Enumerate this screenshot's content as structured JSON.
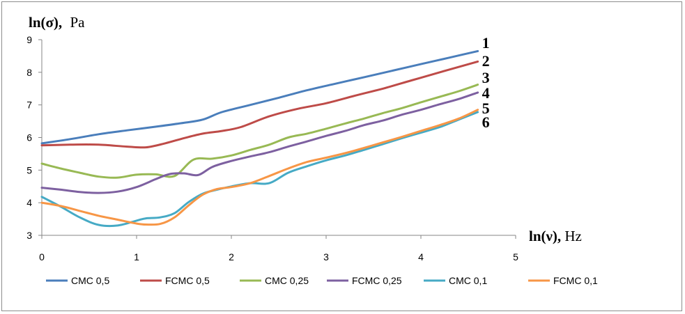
{
  "chart_data": {
    "type": "line",
    "ylabel_main": "ln(σ),",
    "ylabel_unit": "Pa",
    "xlabel_main": "ln(ν),",
    "xlabel_unit": "Hz",
    "xlim": [
      0,
      5
    ],
    "ylim": [
      3,
      9
    ],
    "x_ticks": [
      0,
      1,
      2,
      3,
      4,
      5
    ],
    "y_ticks": [
      3,
      4,
      5,
      6,
      7,
      8,
      9
    ],
    "legend_position": "bottom",
    "series": [
      {
        "name": "CMC 0,5",
        "label": "1",
        "color": "#4a7ebb",
        "x": [
          0,
          0.3,
          0.6,
          0.9,
          1.2,
          1.5,
          1.7,
          1.9,
          2.2,
          2.5,
          2.8,
          3.1,
          3.4,
          3.7,
          4.0,
          4.3,
          4.6
        ],
        "y": [
          5.82,
          5.95,
          6.1,
          6.22,
          6.33,
          6.45,
          6.55,
          6.78,
          7.0,
          7.22,
          7.45,
          7.65,
          7.85,
          8.05,
          8.25,
          8.45,
          8.65
        ]
      },
      {
        "name": "FCMC 0,5",
        "label": "2",
        "color": "#be4b48",
        "x": [
          0,
          0.3,
          0.6,
          0.9,
          1.1,
          1.3,
          1.5,
          1.7,
          1.9,
          2.1,
          2.4,
          2.7,
          3.0,
          3.3,
          3.6,
          3.9,
          4.2,
          4.6
        ],
        "y": [
          5.76,
          5.78,
          5.78,
          5.72,
          5.7,
          5.82,
          5.98,
          6.12,
          6.2,
          6.32,
          6.65,
          6.88,
          7.05,
          7.28,
          7.5,
          7.75,
          8.0,
          8.33
        ]
      },
      {
        "name": "CMC 0,25",
        "label": "3",
        "color": "#98b954",
        "x": [
          0,
          0.2,
          0.4,
          0.6,
          0.8,
          1.0,
          1.2,
          1.4,
          1.6,
          1.8,
          2.0,
          2.2,
          2.4,
          2.6,
          2.8,
          3.0,
          3.2,
          3.4,
          3.6,
          3.8,
          4.0,
          4.2,
          4.4,
          4.6
        ],
        "y": [
          5.2,
          5.05,
          4.92,
          4.8,
          4.77,
          4.86,
          4.87,
          4.82,
          5.32,
          5.35,
          5.45,
          5.62,
          5.78,
          6.0,
          6.12,
          6.27,
          6.43,
          6.58,
          6.75,
          6.9,
          7.08,
          7.25,
          7.42,
          7.62
        ]
      },
      {
        "name": "FCMC 0,25",
        "label": "4",
        "color": "#7d60a0",
        "x": [
          0,
          0.2,
          0.4,
          0.6,
          0.8,
          1.0,
          1.2,
          1.35,
          1.5,
          1.65,
          1.8,
          2.0,
          2.2,
          2.4,
          2.6,
          2.8,
          3.0,
          3.2,
          3.4,
          3.6,
          3.8,
          4.0,
          4.2,
          4.4,
          4.6
        ],
        "y": [
          4.46,
          4.4,
          4.33,
          4.3,
          4.34,
          4.48,
          4.72,
          4.88,
          4.9,
          4.85,
          5.1,
          5.28,
          5.42,
          5.55,
          5.72,
          5.88,
          6.05,
          6.2,
          6.38,
          6.52,
          6.7,
          6.85,
          7.02,
          7.18,
          7.38
        ]
      },
      {
        "name": "CMC 0,1",
        "label": "6",
        "color": "#46aac5",
        "x": [
          0,
          0.2,
          0.4,
          0.6,
          0.8,
          1.0,
          1.1,
          1.25,
          1.4,
          1.55,
          1.7,
          1.85,
          2.0,
          2.2,
          2.4,
          2.6,
          2.8,
          3.0,
          3.2,
          3.4,
          3.6,
          3.8,
          4.0,
          4.2,
          4.4,
          4.6
        ],
        "y": [
          4.18,
          3.88,
          3.55,
          3.32,
          3.3,
          3.45,
          3.52,
          3.55,
          3.68,
          4.02,
          4.28,
          4.4,
          4.5,
          4.6,
          4.6,
          4.92,
          5.12,
          5.3,
          5.45,
          5.62,
          5.8,
          5.98,
          6.15,
          6.32,
          6.55,
          6.78
        ]
      },
      {
        "name": "FCMC 0,1",
        "label": "5",
        "color": "#f79646",
        "x": [
          0,
          0.2,
          0.4,
          0.6,
          0.8,
          1.0,
          1.1,
          1.25,
          1.4,
          1.55,
          1.7,
          1.85,
          2.0,
          2.2,
          2.4,
          2.6,
          2.8,
          3.0,
          3.2,
          3.4,
          3.6,
          3.8,
          4.0,
          4.2,
          4.4,
          4.6
        ],
        "y": [
          4.0,
          3.9,
          3.75,
          3.6,
          3.48,
          3.36,
          3.33,
          3.35,
          3.55,
          3.92,
          4.25,
          4.42,
          4.48,
          4.6,
          4.82,
          5.05,
          5.25,
          5.38,
          5.52,
          5.68,
          5.85,
          6.02,
          6.2,
          6.38,
          6.58,
          6.85
        ]
      }
    ]
  }
}
